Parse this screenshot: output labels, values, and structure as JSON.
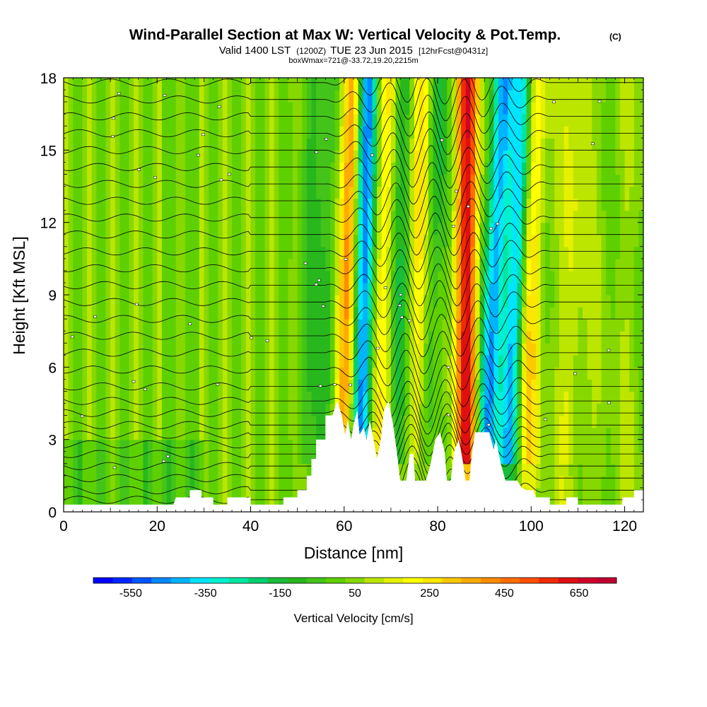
{
  "chart_data": {
    "type": "heatmap",
    "title": "Wind-Parallel Section at Max W: Vertical Velocity & Pot.Temp.",
    "title_mark": "(C)",
    "subtitle": {
      "main_a": "Valid 1400 LST",
      "zulu": "(1200Z)",
      "main_b": "TUE 23 Jun 2015",
      "fcst": "[12hrFcst@0431z]"
    },
    "box_info": "boxWmax=721@-33.72,19.20,2215m",
    "xlabel": "Distance [nm]",
    "ylabel": "Height [Kft MSL]",
    "xlim": [
      0,
      124
    ],
    "ylim": [
      0,
      18
    ],
    "x_ticks": [
      "0",
      "20",
      "40",
      "60",
      "80",
      "100",
      "120"
    ],
    "y_ticks": [
      "0",
      "3",
      "6",
      "9",
      "12",
      "15",
      "18"
    ],
    "colorbar": {
      "label": "Vertical Velocity [cm/s]",
      "tick_labels": [
        "-550",
        "-350",
        "-150",
        "50",
        "250",
        "450",
        "650"
      ],
      "range": [
        -650,
        750
      ],
      "colors": [
        "#0000ff",
        "#0026ff",
        "#0055ff",
        "#0088ff",
        "#00b4ff",
        "#00e4ff",
        "#00f0d0",
        "#00e6a0",
        "#00d070",
        "#18be3a",
        "#28b81e",
        "#44c41a",
        "#5ed000",
        "#86d800",
        "#bce600",
        "#e6f000",
        "#ffff00",
        "#ffe600",
        "#ffc800",
        "#ffaa00",
        "#ff8c00",
        "#ff6e00",
        "#ff5000",
        "#f02c00",
        "#e01010",
        "#d00028",
        "#c00030"
      ]
    },
    "velocity_features": [
      {
        "x": 59.8,
        "w": 430,
        "top_x": 61.8
      },
      {
        "x": 63.2,
        "w": -610,
        "top_x": 65.0
      },
      {
        "x": 67.5,
        "w": 250,
        "top_x": 69.0
      },
      {
        "x": 71.0,
        "w": -250,
        "top_x": 72.5
      },
      {
        "x": 75.5,
        "w": 280,
        "top_x": 76.5
      },
      {
        "x": 86.0,
        "w": 560,
        "top_x": 86.5
      },
      {
        "x": 90.0,
        "w": -500,
        "top_x": 94.0
      },
      {
        "x": 94.5,
        "w": -420,
        "top_x": 98.5
      },
      {
        "x": 99.0,
        "w": 220,
        "top_x": 101.0
      },
      {
        "x": 76.5,
        "w": -220,
        "top_x": 80.0
      },
      {
        "x": 51.5,
        "w": -140,
        "top_x": 53.0
      },
      {
        "x": 56.0,
        "w": -160,
        "top_x": 58.0
      },
      {
        "x": 108.0,
        "w": 90,
        "top_x": 110.0
      }
    ],
    "terrain": [
      [
        0,
        0.3
      ],
      [
        23.5,
        0.3
      ],
      [
        24,
        0.6
      ],
      [
        27,
        0.6
      ],
      [
        27,
        0.9
      ],
      [
        29.5,
        0.9
      ],
      [
        29.5,
        0.6
      ],
      [
        32,
        0.6
      ],
      [
        32,
        0.3
      ],
      [
        35,
        0.3
      ],
      [
        35,
        0.6
      ],
      [
        40,
        0.6
      ],
      [
        40,
        0.3
      ],
      [
        47,
        0.3
      ],
      [
        47,
        0.6
      ],
      [
        50,
        0.6
      ],
      [
        50,
        0.9
      ],
      [
        52,
        0.9
      ],
      [
        52,
        1.5
      ],
      [
        53,
        1.5
      ],
      [
        53,
        2.2
      ],
      [
        54,
        2.2
      ],
      [
        54,
        3.0
      ],
      [
        56,
        3.0
      ],
      [
        56,
        4.0
      ],
      [
        57.5,
        4.0
      ],
      [
        58.5,
        4.6
      ],
      [
        59.5,
        4.0
      ],
      [
        60.2,
        3.2
      ],
      [
        60.8,
        3.8
      ],
      [
        61.5,
        3.0
      ],
      [
        62,
        3.6
      ],
      [
        62.8,
        4.2
      ],
      [
        63.3,
        3.2
      ],
      [
        64.2,
        3.5
      ],
      [
        64.8,
        3.0
      ],
      [
        65.5,
        3.8
      ],
      [
        66.3,
        3.0
      ],
      [
        67,
        2.2
      ],
      [
        67.8,
        3.0
      ],
      [
        68.5,
        4.2
      ],
      [
        69.5,
        4.6
      ],
      [
        70.5,
        3.6
      ],
      [
        71.2,
        2.6
      ],
      [
        72,
        1.3
      ],
      [
        73.3,
        1.3
      ],
      [
        74,
        2.4
      ],
      [
        74.8,
        2.4
      ],
      [
        75.2,
        1.3
      ],
      [
        77.5,
        1.3
      ],
      [
        78.5,
        2.0
      ],
      [
        79.5,
        3.0
      ],
      [
        80.5,
        3.3
      ],
      [
        81.5,
        2.5
      ],
      [
        82,
        1.3
      ],
      [
        82.8,
        1.3
      ],
      [
        83.5,
        2.5
      ],
      [
        84.5,
        3.0
      ],
      [
        85.3,
        2.2
      ],
      [
        86,
        1.3
      ],
      [
        86.8,
        1.3
      ],
      [
        87.3,
        2.4
      ],
      [
        88,
        3.3
      ],
      [
        91,
        3.3
      ],
      [
        92,
        2.6
      ],
      [
        92.5,
        3.0
      ],
      [
        93.5,
        2.0
      ],
      [
        94.5,
        1.3
      ],
      [
        97,
        1.3
      ],
      [
        98,
        1.0
      ],
      [
        99,
        0.9
      ],
      [
        100.5,
        0.9
      ],
      [
        101,
        0.6
      ],
      [
        104,
        0.6
      ],
      [
        104,
        0.3
      ],
      [
        107.5,
        0.3
      ],
      [
        107.5,
        0.6
      ],
      [
        110,
        0.6
      ],
      [
        110,
        0.3
      ],
      [
        119.5,
        0.3
      ],
      [
        119.5,
        0.6
      ],
      [
        122,
        0.6
      ],
      [
        122,
        0.9
      ],
      [
        124,
        0.9
      ]
    ],
    "theta_contours": {
      "base_levels_kft": [
        0.5,
        0.9,
        1.4,
        1.9,
        2.4,
        2.8,
        3.2,
        3.6,
        4.1,
        4.6,
        5.2,
        5.9,
        6.6,
        7.3,
        8.0,
        8.7,
        9.4,
        10.1,
        10.8,
        11.5,
        12.2,
        12.9,
        13.6,
        14.3,
        15.0,
        15.7,
        16.4,
        17.1,
        17.8
      ],
      "wave_amplitude_kft": 0.9,
      "wave_start_x": 56,
      "wave_end_x": 104
    }
  }
}
